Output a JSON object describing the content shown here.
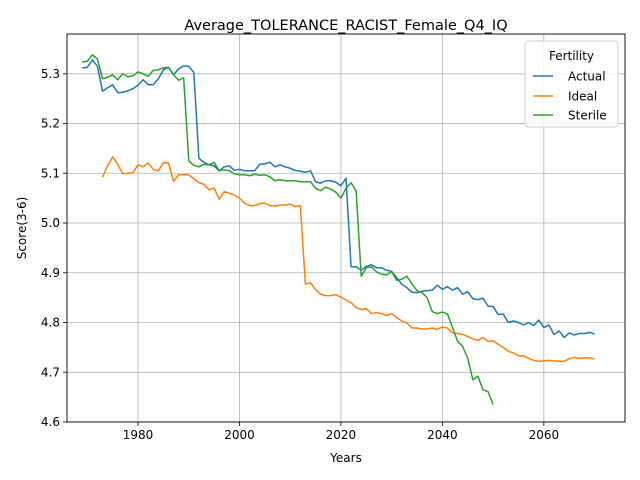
{
  "chart_data": {
    "type": "line",
    "title": "Average_TOLERANCE_RACIST_Female_Q4_IQ",
    "xlabel": "Years",
    "ylabel": "Score(3-6)",
    "xlim": [
      1966,
      2076
    ],
    "ylim": [
      4.6,
      5.38
    ],
    "x_ticks": [
      1980,
      2000,
      2020,
      2040,
      2060
    ],
    "y_ticks": [
      4.6,
      4.7,
      4.8,
      4.9,
      5.0,
      5.1,
      5.2,
      5.3
    ],
    "x_tick_labels": [
      "1980",
      "2000",
      "2020",
      "2040",
      "2060"
    ],
    "y_tick_labels": [
      "4.6",
      "4.7",
      "4.8",
      "4.9",
      "5.0",
      "5.1",
      "5.2",
      "5.3"
    ],
    "grid": true,
    "legend": {
      "title": "Fertility",
      "position": "top-right"
    },
    "series": [
      {
        "name": "Actual",
        "color": "#1f77b4",
        "points": [
          [
            1969,
            5.312
          ],
          [
            1970,
            5.313
          ],
          [
            1971,
            5.328
          ],
          [
            1972,
            5.315
          ],
          [
            1973,
            5.265
          ],
          [
            1974,
            5.272
          ],
          [
            1975,
            5.278
          ],
          [
            1976,
            5.262
          ],
          [
            1977,
            5.263
          ],
          [
            1978,
            5.266
          ],
          [
            1979,
            5.27
          ],
          [
            1980,
            5.277
          ],
          [
            1981,
            5.288
          ],
          [
            1982,
            5.278
          ],
          [
            1983,
            5.278
          ],
          [
            1984,
            5.29
          ],
          [
            1985,
            5.308
          ],
          [
            1986,
            5.313
          ],
          [
            1987,
            5.298
          ],
          [
            1988,
            5.31
          ],
          [
            1989,
            5.316
          ],
          [
            1990,
            5.315
          ],
          [
            1991,
            5.303
          ],
          [
            1992,
            5.13
          ],
          [
            1993,
            5.122
          ],
          [
            1994,
            5.117
          ],
          [
            1995,
            5.115
          ],
          [
            1996,
            5.105
          ],
          [
            1997,
            5.113
          ],
          [
            1998,
            5.115
          ],
          [
            1999,
            5.106
          ],
          [
            2000,
            5.108
          ],
          [
            2001,
            5.105
          ],
          [
            2002,
            5.105
          ],
          [
            2003,
            5.105
          ],
          [
            2004,
            5.118
          ],
          [
            2005,
            5.119
          ],
          [
            2006,
            5.122
          ],
          [
            2007,
            5.113
          ],
          [
            2008,
            5.117
          ],
          [
            2009,
            5.113
          ],
          [
            2010,
            5.11
          ],
          [
            2011,
            5.106
          ],
          [
            2012,
            5.104
          ],
          [
            2013,
            5.102
          ],
          [
            2014,
            5.105
          ],
          [
            2015,
            5.083
          ],
          [
            2016,
            5.08
          ],
          [
            2017,
            5.085
          ],
          [
            2018,
            5.085
          ],
          [
            2019,
            5.082
          ],
          [
            2020,
            5.075
          ],
          [
            2021,
            5.09
          ],
          [
            2022,
            4.912
          ],
          [
            2023,
            4.912
          ],
          [
            2024,
            4.905
          ],
          [
            2025,
            4.913
          ],
          [
            2026,
            4.916
          ],
          [
            2027,
            4.91
          ],
          [
            2028,
            4.91
          ],
          [
            2029,
            4.905
          ],
          [
            2030,
            4.903
          ],
          [
            2031,
            4.89
          ],
          [
            2032,
            4.877
          ],
          [
            2033,
            4.87
          ],
          [
            2034,
            4.861
          ],
          [
            2035,
            4.86
          ],
          [
            2036,
            4.863
          ],
          [
            2037,
            4.864
          ],
          [
            2038,
            4.865
          ],
          [
            2039,
            4.875
          ],
          [
            2040,
            4.867
          ],
          [
            2041,
            4.872
          ],
          [
            2042,
            4.865
          ],
          [
            2043,
            4.87
          ],
          [
            2044,
            4.857
          ],
          [
            2045,
            4.862
          ],
          [
            2046,
            4.848
          ],
          [
            2047,
            4.846
          ],
          [
            2048,
            4.849
          ],
          [
            2049,
            4.833
          ],
          [
            2050,
            4.832
          ],
          [
            2051,
            4.816
          ],
          [
            2052,
            4.817
          ],
          [
            2053,
            4.8
          ],
          [
            2054,
            4.803
          ],
          [
            2055,
            4.8
          ],
          [
            2056,
            4.795
          ],
          [
            2057,
            4.8
          ],
          [
            2058,
            4.794
          ],
          [
            2059,
            4.805
          ],
          [
            2060,
            4.79
          ],
          [
            2061,
            4.795
          ],
          [
            2062,
            4.776
          ],
          [
            2063,
            4.783
          ],
          [
            2064,
            4.77
          ],
          [
            2065,
            4.779
          ],
          [
            2066,
            4.775
          ],
          [
            2067,
            4.778
          ],
          [
            2068,
            4.778
          ],
          [
            2069,
            4.78
          ],
          [
            2070,
            4.777
          ]
        ]
      },
      {
        "name": "Ideal",
        "color": "#ff7f0e",
        "points": [
          [
            1973,
            5.092
          ],
          [
            1974,
            5.115
          ],
          [
            1975,
            5.133
          ],
          [
            1976,
            5.118
          ],
          [
            1977,
            5.099
          ],
          [
            1978,
            5.1
          ],
          [
            1979,
            5.101
          ],
          [
            1980,
            5.117
          ],
          [
            1981,
            5.113
          ],
          [
            1982,
            5.121
          ],
          [
            1983,
            5.108
          ],
          [
            1984,
            5.105
          ],
          [
            1985,
            5.121
          ],
          [
            1986,
            5.121
          ],
          [
            1987,
            5.084
          ],
          [
            1988,
            5.097
          ],
          [
            1989,
            5.097
          ],
          [
            1990,
            5.097
          ],
          [
            1991,
            5.089
          ],
          [
            1992,
            5.081
          ],
          [
            1993,
            5.078
          ],
          [
            1994,
            5.067
          ],
          [
            1995,
            5.07
          ],
          [
            1996,
            5.048
          ],
          [
            1997,
            5.063
          ],
          [
            1998,
            5.06
          ],
          [
            1999,
            5.056
          ],
          [
            2000,
            5.05
          ],
          [
            2001,
            5.04
          ],
          [
            2002,
            5.035
          ],
          [
            2003,
            5.035
          ],
          [
            2004,
            5.039
          ],
          [
            2005,
            5.04
          ],
          [
            2006,
            5.035
          ],
          [
            2007,
            5.034
          ],
          [
            2008,
            5.036
          ],
          [
            2009,
            5.036
          ],
          [
            2010,
            5.038
          ],
          [
            2011,
            5.033
          ],
          [
            2012,
            5.035
          ],
          [
            2013,
            4.877
          ],
          [
            2014,
            4.88
          ],
          [
            2015,
            4.866
          ],
          [
            2016,
            4.857
          ],
          [
            2017,
            4.854
          ],
          [
            2018,
            4.854
          ],
          [
            2019,
            4.856
          ],
          [
            2020,
            4.851
          ],
          [
            2021,
            4.845
          ],
          [
            2022,
            4.84
          ],
          [
            2023,
            4.83
          ],
          [
            2024,
            4.826
          ],
          [
            2025,
            4.828
          ],
          [
            2026,
            4.818
          ],
          [
            2027,
            4.82
          ],
          [
            2028,
            4.818
          ],
          [
            2029,
            4.814
          ],
          [
            2030,
            4.818
          ],
          [
            2031,
            4.81
          ],
          [
            2032,
            4.803
          ],
          [
            2033,
            4.799
          ],
          [
            2034,
            4.789
          ],
          [
            2035,
            4.789
          ],
          [
            2036,
            4.787
          ],
          [
            2037,
            4.787
          ],
          [
            2038,
            4.789
          ],
          [
            2039,
            4.786
          ],
          [
            2040,
            4.791
          ],
          [
            2041,
            4.789
          ],
          [
            2042,
            4.779
          ],
          [
            2043,
            4.778
          ],
          [
            2044,
            4.776
          ],
          [
            2045,
            4.772
          ],
          [
            2046,
            4.767
          ],
          [
            2047,
            4.764
          ],
          [
            2048,
            4.77
          ],
          [
            2049,
            4.762
          ],
          [
            2050,
            4.763
          ],
          [
            2051,
            4.756
          ],
          [
            2052,
            4.75
          ],
          [
            2053,
            4.742
          ],
          [
            2054,
            4.739
          ],
          [
            2055,
            4.733
          ],
          [
            2056,
            4.733
          ],
          [
            2057,
            4.728
          ],
          [
            2058,
            4.724
          ],
          [
            2059,
            4.722
          ],
          [
            2060,
            4.723
          ],
          [
            2061,
            4.724
          ],
          [
            2062,
            4.723
          ],
          [
            2063,
            4.722
          ],
          [
            2064,
            4.722
          ],
          [
            2065,
            4.727
          ],
          [
            2066,
            4.73
          ],
          [
            2067,
            4.728
          ],
          [
            2068,
            4.729
          ],
          [
            2069,
            4.729
          ],
          [
            2070,
            4.727
          ]
        ]
      },
      {
        "name": "Sterile",
        "color": "#2ca02c",
        "points": [
          [
            1969,
            5.324
          ],
          [
            1970,
            5.325
          ],
          [
            1971,
            5.338
          ],
          [
            1972,
            5.33
          ],
          [
            1973,
            5.29
          ],
          [
            1974,
            5.293
          ],
          [
            1975,
            5.298
          ],
          [
            1976,
            5.288
          ],
          [
            1977,
            5.3
          ],
          [
            1978,
            5.294
          ],
          [
            1979,
            5.296
          ],
          [
            1980,
            5.304
          ],
          [
            1981,
            5.3
          ],
          [
            1982,
            5.295
          ],
          [
            1983,
            5.307
          ],
          [
            1984,
            5.308
          ],
          [
            1985,
            5.312
          ],
          [
            1986,
            5.313
          ],
          [
            1987,
            5.298
          ],
          [
            1988,
            5.287
          ],
          [
            1989,
            5.292
          ],
          [
            1990,
            5.125
          ],
          [
            1991,
            5.116
          ],
          [
            1992,
            5.113
          ],
          [
            1993,
            5.118
          ],
          [
            1994,
            5.117
          ],
          [
            1995,
            5.122
          ],
          [
            1996,
            5.105
          ],
          [
            1997,
            5.107
          ],
          [
            1998,
            5.105
          ],
          [
            1999,
            5.099
          ],
          [
            2000,
            5.097
          ],
          [
            2001,
            5.097
          ],
          [
            2002,
            5.095
          ],
          [
            2003,
            5.098
          ],
          [
            2004,
            5.096
          ],
          [
            2005,
            5.097
          ],
          [
            2006,
            5.093
          ],
          [
            2007,
            5.085
          ],
          [
            2008,
            5.087
          ],
          [
            2009,
            5.085
          ],
          [
            2010,
            5.085
          ],
          [
            2011,
            5.085
          ],
          [
            2012,
            5.083
          ],
          [
            2013,
            5.083
          ],
          [
            2014,
            5.083
          ],
          [
            2015,
            5.07
          ],
          [
            2016,
            5.065
          ],
          [
            2017,
            5.072
          ],
          [
            2018,
            5.068
          ],
          [
            2019,
            5.062
          ],
          [
            2020,
            5.05
          ],
          [
            2021,
            5.07
          ],
          [
            2022,
            5.081
          ],
          [
            2023,
            5.065
          ],
          [
            2024,
            4.893
          ],
          [
            2025,
            4.91
          ],
          [
            2026,
            4.912
          ],
          [
            2027,
            4.902
          ],
          [
            2028,
            4.897
          ],
          [
            2029,
            4.896
          ],
          [
            2030,
            4.902
          ],
          [
            2031,
            4.885
          ],
          [
            2032,
            4.887
          ],
          [
            2033,
            4.893
          ],
          [
            2034,
            4.878
          ],
          [
            2035,
            4.864
          ],
          [
            2036,
            4.86
          ],
          [
            2037,
            4.85
          ],
          [
            2038,
            4.822
          ],
          [
            2039,
            4.818
          ],
          [
            2040,
            4.821
          ],
          [
            2041,
            4.817
          ],
          [
            2042,
            4.79
          ],
          [
            2043,
            4.762
          ],
          [
            2044,
            4.752
          ],
          [
            2045,
            4.728
          ],
          [
            2046,
            4.685
          ],
          [
            2047,
            4.692
          ],
          [
            2048,
            4.665
          ],
          [
            2049,
            4.661
          ],
          [
            2050,
            4.635
          ]
        ]
      }
    ]
  }
}
